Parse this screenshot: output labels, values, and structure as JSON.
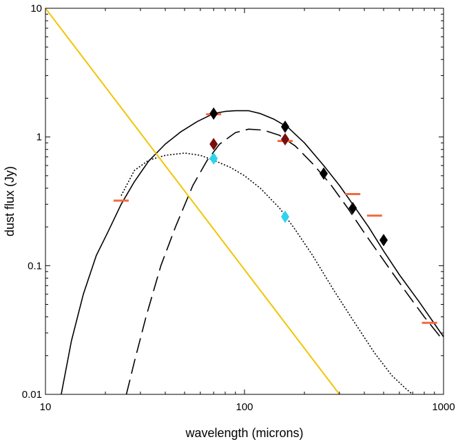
{
  "chart_data": {
    "type": "line",
    "title": "",
    "xlabel": "wavelength (microns)",
    "ylabel": "dust flux (Jy)",
    "x_scale": "log",
    "y_scale": "log",
    "xlim": [
      10,
      1000
    ],
    "ylim": [
      0.01,
      10
    ],
    "grid": false,
    "x_ticks": [
      {
        "value": 10,
        "label": "10"
      },
      {
        "value": 100,
        "label": "100"
      },
      {
        "value": 1000,
        "label": "1000"
      }
    ],
    "y_ticks": [
      {
        "value": 0.01,
        "label": "0.01"
      },
      {
        "value": 0.1,
        "label": "0.1"
      },
      {
        "value": 1,
        "label": "1"
      },
      {
        "value": 10,
        "label": "10"
      }
    ],
    "series": [
      {
        "style": "solid",
        "color": "#000000",
        "x": [
          12,
          13.5,
          15.5,
          18,
          20.5,
          24,
          28,
          33,
          40,
          48,
          58,
          70,
          80,
          90,
          105,
          120,
          140,
          165,
          200,
          250,
          300,
          350,
          420,
          500,
          600,
          750,
          1000
        ],
        "y": [
          0.01,
          0.026,
          0.06,
          0.12,
          0.18,
          0.3,
          0.45,
          0.65,
          0.88,
          1.1,
          1.32,
          1.52,
          1.58,
          1.6,
          1.6,
          1.52,
          1.38,
          1.19,
          0.9,
          0.6,
          0.42,
          0.3,
          0.2,
          0.13,
          0.085,
          0.053,
          0.028
        ]
      },
      {
        "style": "dotted",
        "color": "#000000",
        "x": [
          24,
          28,
          33,
          40,
          50,
          60,
          70,
          85,
          100,
          120,
          150,
          180,
          220,
          280,
          350,
          450,
          550,
          650,
          700
        ],
        "y": [
          0.35,
          0.55,
          0.66,
          0.72,
          0.75,
          0.72,
          0.66,
          0.58,
          0.5,
          0.4,
          0.28,
          0.19,
          0.12,
          0.065,
          0.038,
          0.021,
          0.014,
          0.011,
          0.01
        ]
      },
      {
        "style": "dashed",
        "color": "#000000",
        "x": [
          25.5,
          28,
          32,
          38,
          45,
          55,
          65,
          75,
          90,
          105,
          125,
          150,
          180,
          220,
          270,
          330,
          400,
          500,
          650,
          800,
          1000
        ],
        "y": [
          0.01,
          0.018,
          0.04,
          0.1,
          0.2,
          0.42,
          0.66,
          0.88,
          1.08,
          1.15,
          1.13,
          1.03,
          0.85,
          0.62,
          0.43,
          0.28,
          0.18,
          0.11,
          0.062,
          0.04,
          0.026
        ]
      },
      {
        "style": "solid",
        "color": "#f2c400",
        "x": [
          10,
          300
        ],
        "y": [
          10,
          0.01
        ]
      }
    ],
    "points": [
      {
        "x": 70,
        "y": 1.52,
        "color": "#000000"
      },
      {
        "x": 160,
        "y": 1.2,
        "color": "#000000"
      },
      {
        "x": 250,
        "y": 0.52,
        "color": "#000000"
      },
      {
        "x": 350,
        "y": 0.28,
        "color": "#000000"
      },
      {
        "x": 500,
        "y": 0.158,
        "color": "#000000"
      },
      {
        "x": 70,
        "y": 0.88,
        "color": "#7a0c0c"
      },
      {
        "x": 160,
        "y": 0.96,
        "color": "#7a0c0c"
      },
      {
        "x": 70,
        "y": 0.68,
        "color": "#2ed3ee"
      },
      {
        "x": 160,
        "y": 0.24,
        "color": "#2ed3ee"
      }
    ],
    "limits": [
      {
        "x": 24,
        "y": 0.32,
        "color": "#f26a3d"
      },
      {
        "x": 70,
        "y": 1.5,
        "color": "#f26a3d"
      },
      {
        "x": 160,
        "y": 0.93,
        "color": "#f26a3d"
      },
      {
        "x": 350,
        "y": 0.36,
        "color": "#f26a3d"
      },
      {
        "x": 450,
        "y": 0.245,
        "color": "#f26a3d"
      },
      {
        "x": 850,
        "y": 0.036,
        "color": "#f26a3d"
      }
    ]
  }
}
